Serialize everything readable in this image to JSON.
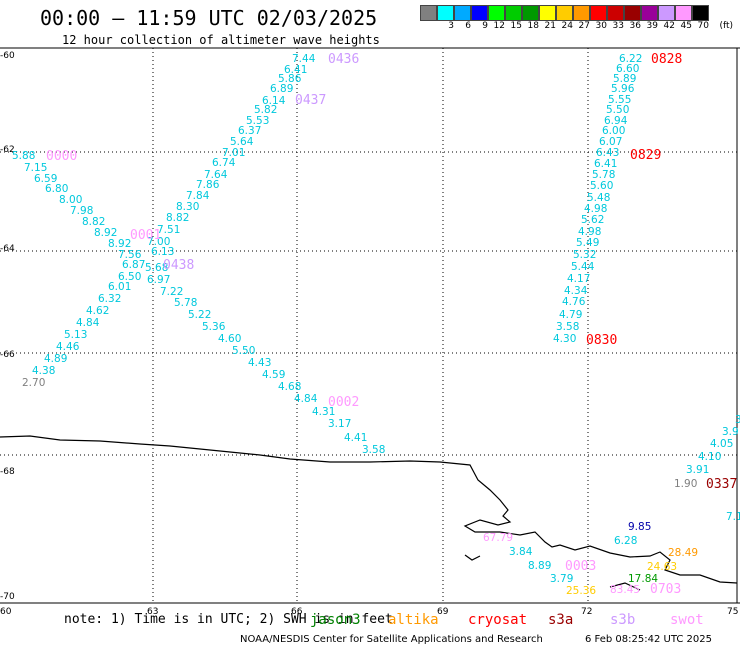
{
  "header": {
    "title": "00:00 – 11:59 UTC 02/03/2025",
    "subtitle": "12 hour collection of altimeter wave heights"
  },
  "legend": {
    "unit": "(ft)",
    "colors": [
      "#808080",
      "#00ffff",
      "#00aaff",
      "#0000ff",
      "#00ff00",
      "#00cc00",
      "#009900",
      "#ffff00",
      "#ffcc00",
      "#ff9900",
      "#ff0000",
      "#cc0000",
      "#990000",
      "#990099",
      "#cc99ff",
      "#ff99ff",
      "#000000"
    ],
    "labels": [
      "",
      "3",
      "6",
      "9",
      "12",
      "15",
      "18",
      "21",
      "24",
      "27",
      "30",
      "33",
      "36",
      "39",
      "42",
      "45",
      "70"
    ]
  },
  "axes": {
    "lon_ticks": [
      "60",
      "63",
      "66",
      "69",
      "72",
      "75"
    ],
    "lat_ticks": [
      "-60",
      "-62",
      "-64",
      "-66",
      "-68",
      "-70"
    ]
  },
  "passes": {
    "p0000": "0000",
    "p0001": "0001",
    "p0002": "0002",
    "p0003": "0003",
    "p0436": "0436",
    "p0437": "0437",
    "p0438": "0438",
    "p0828": "0828",
    "p0829": "0829",
    "p0830": "0830",
    "p0337": "0337",
    "p0703": "0703"
  },
  "wave_track_a": [
    "5.88",
    "7.15",
    "6.59",
    "6.80",
    "8.00",
    "7.98",
    "8.82",
    "8.92",
    "8.92",
    "7.00",
    "7.56",
    "6.13",
    "6.87",
    "5.68",
    "6.50",
    "6.97",
    "6.01",
    "7.22",
    "6.32",
    "5.78",
    "4.62",
    "5.22",
    "4.84",
    "5.36",
    "5.13",
    "4.60",
    "4.46",
    "5.50",
    "4.89",
    "4.43",
    "4.38",
    "4.59",
    "2.70",
    "4.68",
    "4.84",
    "4.31",
    "3.17",
    "4.41",
    "3.58"
  ],
  "wave_track_b": [
    "7.44",
    "6.41",
    "5.86",
    "6.89",
    "6.14",
    "5.82",
    "5.53",
    "6.37",
    "5.64",
    "7.01",
    "6.74",
    "7.64",
    "7.86",
    "7.84",
    "8.30",
    "8.82",
    "7.51"
  ],
  "wave_track_c": [
    "6.22",
    "6.60",
    "5.89",
    "5.96",
    "5.55",
    "5.50",
    "6.94",
    "6.00",
    "6.07",
    "6.43",
    "6.41",
    "5.78",
    "5.60",
    "5.48",
    "4.98",
    "5.62",
    "4.98",
    "5.49",
    "5.32",
    "5.44",
    "4.17",
    "4.34",
    "4.76",
    "4.79",
    "3.58",
    "4.30"
  ],
  "wave_track_d": [
    "3.",
    "3.9",
    "4.05",
    "4.10",
    "3.91",
    "1.90",
    "7.1"
  ],
  "wave_track_e": [
    "9.85",
    "6.28",
    "67.79",
    "3.84",
    "8.89",
    "3.79",
    "25.36",
    "28.49",
    "24.63",
    "17.84",
    "83.45"
  ],
  "footer": {
    "note": "note:  1) Time is in UTC; 2) SWH is in feet",
    "satellites": [
      "jason3",
      "altika",
      "cryosat",
      "s3a",
      "s3b",
      "swot"
    ],
    "credit": "NOAA/NESDIS Center for Satellite Applications and Research",
    "timestamp": "6 Feb 08:25:42 UTC 2025"
  }
}
